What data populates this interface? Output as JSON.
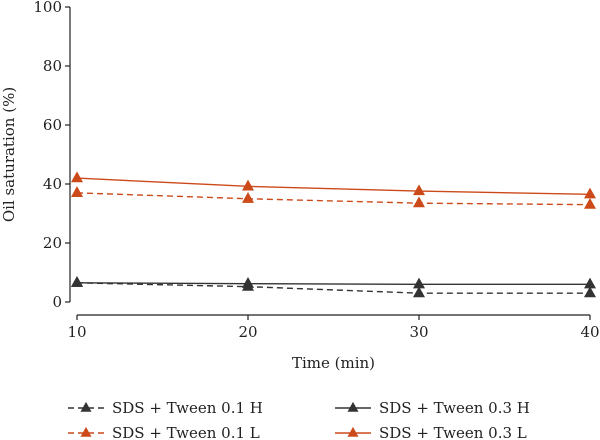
{
  "chart_data": {
    "type": "line",
    "xlabel": "Time (min)",
    "ylabel": "Oil saturation (%)",
    "xlim": [
      10,
      40
    ],
    "ylim": [
      0,
      100
    ],
    "xticks": [
      10,
      20,
      30,
      40
    ],
    "yticks": [
      0,
      20,
      40,
      60,
      80,
      100
    ],
    "x": [
      10,
      20,
      30,
      40
    ],
    "grid": false,
    "legend_position": "bottom",
    "series": [
      {
        "name": "SDS + Tween 0.1 H",
        "values": [
          6.5,
          5.2,
          3.0,
          3.0
        ],
        "color": "#333333",
        "line_style": "dashed",
        "marker": "triangle"
      },
      {
        "name": "SDS + Tween 0.3 H",
        "values": [
          6.5,
          6.2,
          6.0,
          6.0
        ],
        "color": "#333333",
        "line_style": "solid",
        "marker": "triangle"
      },
      {
        "name": "SDS + Tween 0.1 L",
        "values": [
          37.0,
          35.0,
          33.5,
          33.0
        ],
        "color": "#cc4a1a",
        "line_style": "dashed",
        "marker": "triangle"
      },
      {
        "name": "SDS + Tween 0.3 L",
        "values": [
          42.0,
          39.2,
          37.6,
          36.5
        ],
        "color": "#cc4a1a",
        "line_style": "solid",
        "marker": "triangle"
      }
    ]
  }
}
